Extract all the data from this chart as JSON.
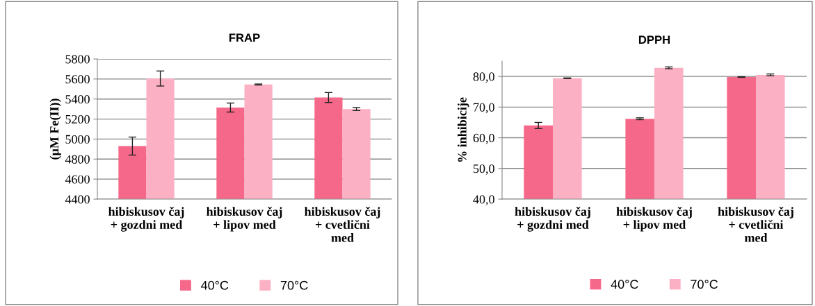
{
  "chart_data": [
    {
      "type": "bar",
      "title": "FRAP",
      "ylabel": "(µM Fe(II))",
      "categories": [
        "hibiskusov čaj\n+ gozdni med",
        "hibiskusov čaj\n+ lipov med",
        "hibiskusov čaj\n+ cvetlični\nmed"
      ],
      "series": [
        {
          "name": "40°C",
          "color": "#f6688a",
          "values": [
            4930,
            5315,
            5415
          ],
          "errors": [
            90,
            45,
            50
          ]
        },
        {
          "name": "70°C",
          "color": "#fbb0c3",
          "values": [
            5605,
            5545,
            5300
          ],
          "errors": [
            75,
            5,
            15
          ]
        }
      ],
      "ylim": [
        4400,
        5800
      ],
      "yticks": [
        4400,
        4600,
        4800,
        5000,
        5200,
        5400,
        5600,
        5800
      ],
      "grid": "y",
      "legend": "bottom"
    },
    {
      "type": "bar",
      "title": "DPPH",
      "ylabel": "% inhibicije",
      "categories": [
        "hibiskusov čaj\n+ gozdni med",
        "hibiskusov čaj\n+ lipov med",
        "hibiskusov čaj\n+ cvetlični\nmed"
      ],
      "series": [
        {
          "name": "40°C",
          "color": "#f6688a",
          "values": [
            64.0,
            66.2,
            79.8
          ],
          "errors": [
            1.0,
            0.3,
            0.1
          ]
        },
        {
          "name": "70°C",
          "color": "#fbb0c3",
          "values": [
            79.4,
            82.8,
            80.5
          ],
          "errors": [
            0.1,
            0.3,
            0.3
          ]
        }
      ],
      "ylim": [
        40,
        85
      ],
      "yticks": [
        {
          "value": 40,
          "label": "40,0"
        },
        {
          "value": 50,
          "label": "50,0"
        },
        {
          "value": 60,
          "label": "60,0"
        },
        {
          "value": 70,
          "label": "70,0"
        },
        {
          "value": 80,
          "label": "80,0"
        }
      ],
      "grid": "y",
      "legend": "bottom"
    }
  ]
}
